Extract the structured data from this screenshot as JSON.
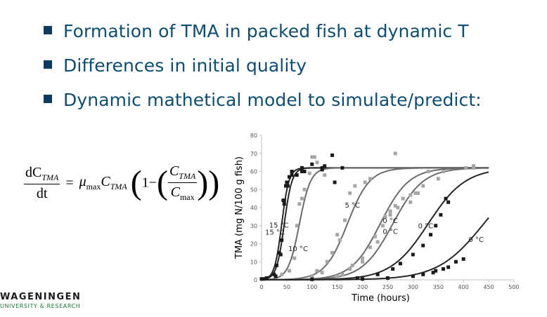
{
  "bullets": [
    {
      "text": "Formation of TMA in packed fish at dynamic T"
    },
    {
      "text": "Differences in initial quality"
    },
    {
      "text": "Dynamic mathetical model to simulate/predict:"
    }
  ],
  "formula": {
    "numerator": "dC",
    "numerator_sub": "TMA",
    "denominator": "dt",
    "equals": "=",
    "mu": "μ",
    "mu_sub": "max",
    "c": "C",
    "c_sub": "TMA",
    "one_minus": "1−",
    "ratio_num": "C",
    "ratio_num_sub": "TMA",
    "ratio_den": "C",
    "ratio_den_sub": "max"
  },
  "logo": {
    "main": "WAGENINGEN",
    "sub": "UNIVERSITY & RESEARCH"
  },
  "colors": {
    "bullet_text": "#0f4d6e",
    "bullet_marker": "#0d3b5e",
    "logo_sub": "#1a7a32",
    "curve_dark": "#262626",
    "curve_mid": "#6b6b6b",
    "point_light": "#a6a6a6"
  },
  "chart_data": {
    "type": "scatter",
    "xlabel": "Time (hours)",
    "ylabel": "TMA (mg N/100 g fish)",
    "xlim": [
      0,
      500
    ],
    "ylim": [
      0,
      80
    ],
    "xticks": [
      "0",
      "50",
      "100",
      "150",
      "200",
      "250",
      "300",
      "350",
      "400",
      "450",
      "500"
    ],
    "yticks": [
      "0",
      "10",
      "20",
      "30",
      "40",
      "50",
      "60",
      "70",
      "80"
    ],
    "grid": false,
    "annotations": [
      {
        "text": "15 °C",
        "x": 15,
        "y": 29
      },
      {
        "text": "15 °C",
        "x": 7,
        "y": 25
      },
      {
        "text": "10 °C",
        "x": 53,
        "y": 16
      },
      {
        "text": "5 °C",
        "x": 165,
        "y": 40
      },
      {
        "text": "0 °C",
        "x": 240,
        "y": 31.5
      },
      {
        "text": "0 °C",
        "x": 240,
        "y": 25.5
      },
      {
        "text": "0 °C",
        "x": 310,
        "y": 28.5
      },
      {
        "text": "0 °C",
        "x": 410,
        "y": 21
      }
    ],
    "series": [
      {
        "color": "#262626",
        "curve": {
          "t0": 40,
          "k": 0.14,
          "max": 62
        },
        "points": [
          [
            0,
            0.5
          ],
          [
            10,
            1
          ],
          [
            25,
            3
          ],
          [
            30,
            8
          ],
          [
            35,
            15
          ],
          [
            40,
            22
          ],
          [
            43,
            44
          ],
          [
            45,
            44
          ],
          [
            48,
            52
          ],
          [
            50,
            54
          ],
          [
            55,
            57
          ],
          [
            60,
            60
          ],
          [
            70,
            58
          ],
          [
            80,
            62
          ],
          [
            85,
            60
          ],
          [
            100,
            64
          ],
          [
            120,
            62
          ],
          [
            125,
            63
          ],
          [
            140,
            69
          ],
          [
            145,
            54
          ],
          [
            160,
            62
          ]
        ]
      },
      {
        "color": "#262626",
        "curve": {
          "t0": 45,
          "k": 0.13,
          "max": 62
        },
        "points": [
          [
            5,
            0.5
          ],
          [
            28,
            2
          ],
          [
            38,
            14
          ],
          [
            45,
            42
          ],
          [
            52,
            52
          ],
          [
            60,
            58
          ],
          [
            80,
            60
          ],
          [
            120,
            61
          ]
        ]
      },
      {
        "color": "#6b6b6b",
        "curve": {
          "t0": 75,
          "k": 0.09,
          "max": 62
        },
        "points": [
          [
            40,
            3
          ],
          [
            55,
            5
          ],
          [
            65,
            12
          ],
          [
            70,
            30
          ],
          [
            75,
            42
          ],
          [
            80,
            45
          ],
          [
            85,
            50
          ],
          [
            95,
            59
          ],
          [
            100,
            68
          ],
          [
            105,
            68
          ],
          [
            110,
            65
          ],
          [
            125,
            58
          ]
        ]
      },
      {
        "color": "#6b6b6b",
        "curve": {
          "t0": 170,
          "k": 0.045,
          "max": 62
        },
        "points": [
          [
            100,
            2
          ],
          [
            110,
            5
          ],
          [
            120,
            4
          ],
          [
            130,
            10
          ],
          [
            140,
            15
          ],
          [
            150,
            25
          ],
          [
            155,
            22
          ],
          [
            165,
            33
          ],
          [
            175,
            48
          ],
          [
            185,
            52
          ],
          [
            205,
            54
          ],
          [
            215,
            56
          ],
          [
            265,
            70
          ]
        ]
      },
      {
        "color": "#6b6b6b",
        "curve": {
          "t0": 235,
          "k": 0.035,
          "max": 62
        },
        "points": [
          [
            150,
            2
          ],
          [
            175,
            6
          ],
          [
            200,
            12
          ],
          [
            215,
            18
          ],
          [
            225,
            24
          ],
          [
            240,
            30
          ],
          [
            245,
            35
          ],
          [
            255,
            36
          ],
          [
            270,
            40
          ],
          [
            280,
            45
          ],
          [
            295,
            43
          ],
          [
            305,
            48
          ],
          [
            320,
            52
          ],
          [
            350,
            56
          ],
          [
            405,
            62
          ],
          [
            420,
            63
          ]
        ]
      },
      {
        "color": "#6b6b6b",
        "curve": {
          "t0": 260,
          "k": 0.033,
          "max": 62
        },
        "points": [
          [
            160,
            3
          ],
          [
            180,
            8
          ],
          [
            200,
            10
          ],
          [
            230,
            21
          ],
          [
            255,
            38
          ],
          [
            265,
            41
          ],
          [
            280,
            45
          ],
          [
            295,
            47
          ],
          [
            310,
            48
          ],
          [
            330,
            60
          ],
          [
            360,
            60
          ],
          [
            420,
            62
          ]
        ]
      },
      {
        "color": "#262626",
        "curve": {
          "t0": 330,
          "k": 0.027,
          "max": 62
        },
        "points": [
          [
            190,
            1
          ],
          [
            230,
            3
          ],
          [
            260,
            6
          ],
          [
            275,
            9
          ],
          [
            300,
            14
          ],
          [
            320,
            19
          ],
          [
            335,
            25
          ],
          [
            345,
            30
          ],
          [
            355,
            36
          ],
          [
            365,
            45
          ],
          [
            370,
            43
          ]
        ]
      },
      {
        "color": "#262626",
        "curve": {
          "t0": 440,
          "k": 0.022,
          "max": 62
        },
        "points": [
          [
            100,
            0.3
          ],
          [
            200,
            0.5
          ],
          [
            250,
            1
          ],
          [
            300,
            2
          ],
          [
            320,
            3
          ],
          [
            340,
            4
          ],
          [
            345,
            5
          ],
          [
            360,
            6
          ],
          [
            370,
            7
          ],
          [
            385,
            10
          ],
          [
            400,
            11.5
          ]
        ]
      }
    ]
  }
}
